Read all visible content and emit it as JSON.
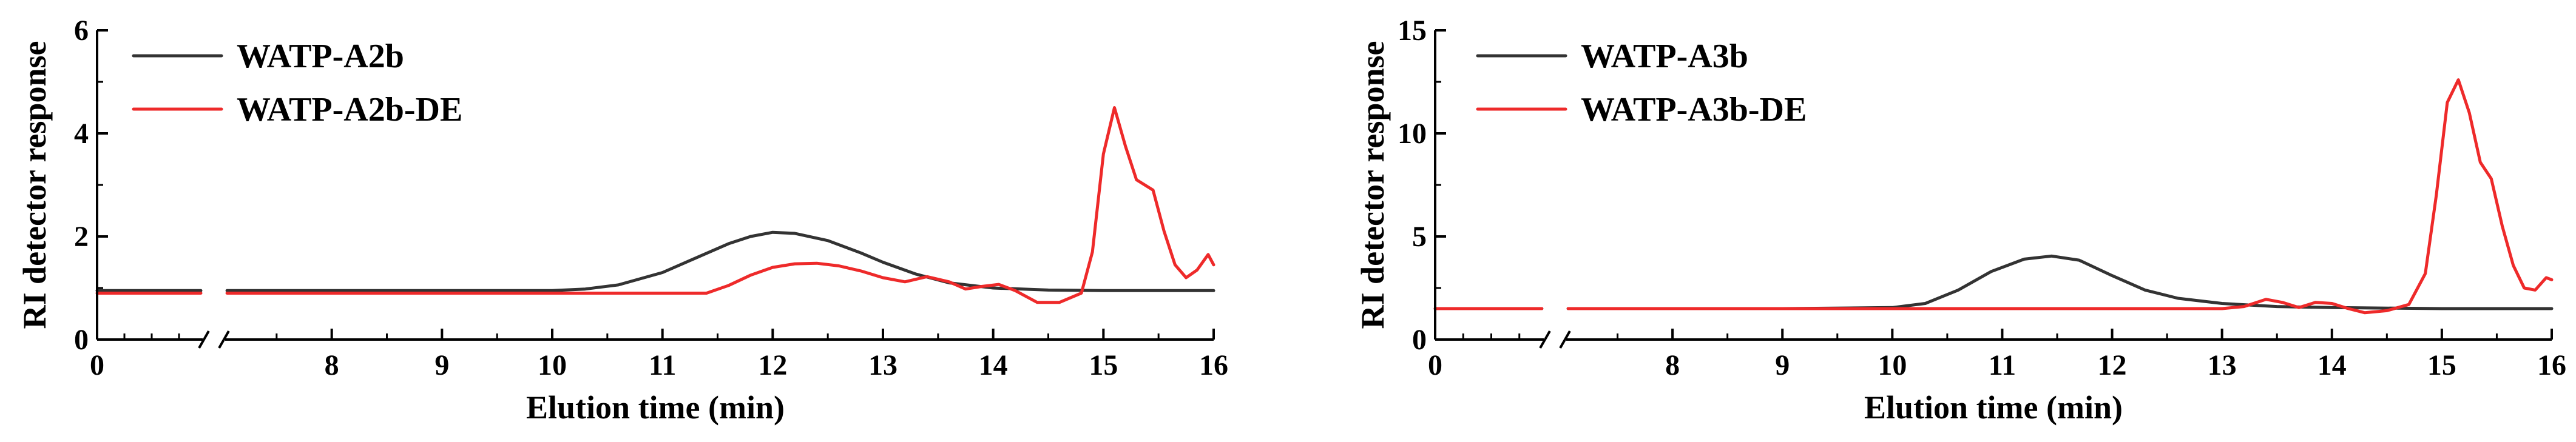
{
  "chart_data": [
    {
      "type": "line",
      "xlabel": "Elution time (min)",
      "ylabel": "RI detector response",
      "xlim": [
        0,
        16
      ],
      "ylim": [
        0,
        6
      ],
      "x_axis_break": [
        1,
        7
      ],
      "x_ticks": [
        "0",
        "8",
        "9",
        "10",
        "11",
        "12",
        "13",
        "14",
        "15",
        "16"
      ],
      "y_ticks": [
        "0",
        "2",
        "4",
        "6"
      ],
      "legend_position": "top-left",
      "series": [
        {
          "name": "WATP-A2b",
          "color": "#333333",
          "x": [
            0,
            0.95,
            7.05,
            8,
            9,
            9.5,
            10,
            10.3,
            10.6,
            11,
            11.3,
            11.6,
            11.8,
            12,
            12.2,
            12.5,
            12.8,
            13,
            13.3,
            13.6,
            14,
            14.5,
            15,
            15.5,
            16
          ],
          "y": [
            0.95,
            0.95,
            0.95,
            0.95,
            0.95,
            0.95,
            0.95,
            0.98,
            1.06,
            1.3,
            1.58,
            1.86,
            2.0,
            2.08,
            2.06,
            1.92,
            1.68,
            1.5,
            1.27,
            1.1,
            1.0,
            0.96,
            0.95,
            0.95,
            0.95
          ]
        },
        {
          "name": "WATP-A2b-DE",
          "color": "#ee2a2a",
          "x": [
            0,
            0.95,
            7.05,
            8,
            9,
            10,
            11,
            11.4,
            11.6,
            11.8,
            12,
            12.2,
            12.4,
            12.6,
            12.8,
            13,
            13.2,
            13.4,
            13.6,
            13.75,
            13.9,
            14.05,
            14.2,
            14.4,
            14.6,
            14.8,
            14.9,
            15.0,
            15.1,
            15.2,
            15.3,
            15.45,
            15.55,
            15.65,
            15.75,
            15.85,
            15.95,
            16
          ],
          "y": [
            0.9,
            0.9,
            0.9,
            0.9,
            0.9,
            0.9,
            0.9,
            0.9,
            1.05,
            1.25,
            1.4,
            1.47,
            1.48,
            1.43,
            1.33,
            1.2,
            1.12,
            1.22,
            1.12,
            0.98,
            1.03,
            1.07,
            0.95,
            0.72,
            0.72,
            0.9,
            1.7,
            3.6,
            4.5,
            3.75,
            3.1,
            2.9,
            2.1,
            1.45,
            1.2,
            1.35,
            1.65,
            1.45
          ]
        }
      ]
    },
    {
      "type": "line",
      "xlabel": "Elution time (min)",
      "ylabel": "RI detector response",
      "xlim": [
        0,
        16
      ],
      "ylim": [
        0,
        15
      ],
      "x_axis_break": [
        1,
        7
      ],
      "x_ticks": [
        "0",
        "8",
        "9",
        "10",
        "11",
        "12",
        "13",
        "14",
        "15",
        "16"
      ],
      "y_ticks": [
        "0",
        "5",
        "10",
        "15"
      ],
      "legend_position": "top-left",
      "series": [
        {
          "name": "WATP-A3b",
          "color": "#333333",
          "x": [
            0,
            0.95,
            7.05,
            8,
            9,
            10,
            10.3,
            10.6,
            10.9,
            11.2,
            11.45,
            11.7,
            12,
            12.3,
            12.6,
            13,
            13.5,
            14,
            15,
            16
          ],
          "y": [
            1.5,
            1.5,
            1.5,
            1.5,
            1.5,
            1.55,
            1.75,
            2.4,
            3.3,
            3.9,
            4.05,
            3.85,
            3.1,
            2.4,
            2.0,
            1.75,
            1.6,
            1.55,
            1.5,
            1.5
          ]
        },
        {
          "name": "WATP-A3b-DE",
          "color": "#ee2a2a",
          "x": [
            0,
            0.95,
            7.05,
            8,
            9,
            10,
            11,
            12,
            13,
            13.2,
            13.4,
            13.55,
            13.7,
            13.85,
            14.0,
            14.15,
            14.3,
            14.5,
            14.7,
            14.85,
            14.95,
            15.05,
            15.15,
            15.25,
            15.35,
            15.45,
            15.55,
            15.65,
            15.75,
            15.85,
            15.95,
            16
          ],
          "y": [
            1.5,
            1.5,
            1.5,
            1.5,
            1.5,
            1.5,
            1.5,
            1.5,
            1.5,
            1.6,
            1.95,
            1.8,
            1.55,
            1.8,
            1.75,
            1.5,
            1.3,
            1.4,
            1.7,
            3.2,
            7.0,
            11.5,
            12.6,
            11.0,
            8.6,
            7.8,
            5.5,
            3.6,
            2.5,
            2.4,
            3.0,
            2.9
          ]
        }
      ]
    }
  ]
}
